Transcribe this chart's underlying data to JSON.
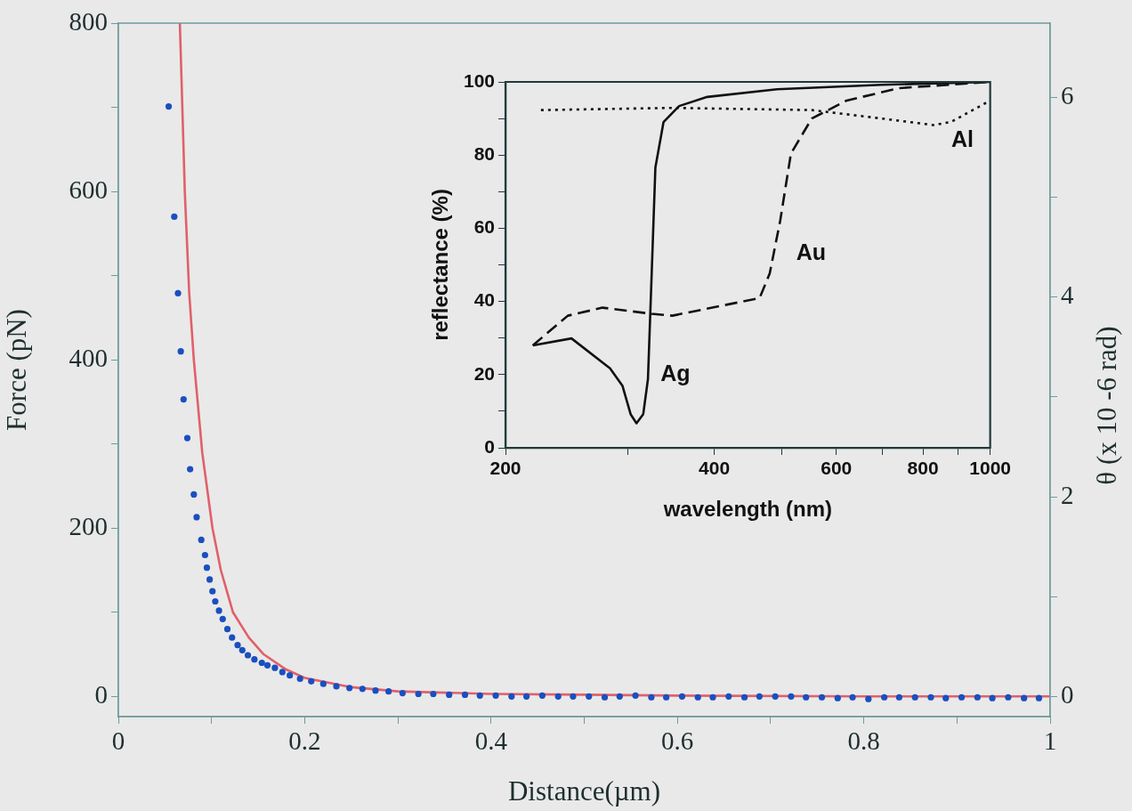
{
  "chart_data": [
    {
      "type": "scatter",
      "xlabel": "Distance(µm)",
      "ylabel": "Force (pN)",
      "y2label": "θ (x 10 -6 rad)",
      "xlim": [
        0,
        1
      ],
      "xticks": [
        0,
        {
          "value": 0.1,
          "label": null
        },
        0.2,
        {
          "value": 0.3,
          "label": null
        },
        0.4,
        {
          "value": 0.5,
          "label": null
        },
        0.6,
        {
          "value": 0.7,
          "label": null
        },
        0.8,
        {
          "value": 0.9,
          "label": null
        },
        1
      ],
      "ylim": [
        -24,
        800
      ],
      "yticks": [
        0,
        {
          "value": 100,
          "label": null
        },
        200,
        {
          "value": 300,
          "label": null
        },
        400,
        {
          "value": 500,
          "label": null
        },
        600,
        {
          "value": 700,
          "label": null
        },
        800
      ],
      "y2lim": [
        -0.2,
        6.74
      ],
      "y2ticks": [
        0,
        {
          "value": 1,
          "label": null
        },
        2,
        {
          "value": 3,
          "label": null
        },
        4,
        {
          "value": 5,
          "label": null
        },
        6
      ],
      "series": [
        {
          "marker": "circle",
          "color": "#1a4fc0",
          "x": [
            0.054,
            0.06,
            0.064,
            0.067,
            0.07,
            0.074,
            0.077,
            0.081,
            0.084,
            0.089,
            0.093,
            0.095,
            0.098,
            0.101,
            0.104,
            0.108,
            0.112,
            0.117,
            0.122,
            0.128,
            0.133,
            0.139,
            0.146,
            0.154,
            0.16,
            0.168,
            0.176,
            0.184,
            0.195,
            0.207,
            0.22,
            0.234,
            0.248,
            0.262,
            0.276,
            0.29,
            0.305,
            0.322,
            0.338,
            0.355,
            0.372,
            0.388,
            0.405,
            0.422,
            0.438,
            0.455,
            0.472,
            0.488,
            0.505,
            0.522,
            0.538,
            0.555,
            0.572,
            0.588,
            0.605,
            0.622,
            0.638,
            0.655,
            0.672,
            0.688,
            0.705,
            0.722,
            0.738,
            0.755,
            0.772,
            0.788,
            0.805,
            0.822,
            0.838,
            0.855,
            0.872,
            0.888,
            0.905,
            0.922,
            0.938,
            0.955,
            0.972,
            0.988
          ],
          "values": [
            701,
            570,
            479,
            410,
            353,
            307,
            270,
            240,
            213,
            186,
            168,
            153,
            139,
            125,
            113,
            102,
            92,
            80,
            70,
            61,
            55,
            49,
            44,
            40,
            37,
            34,
            29,
            25,
            21,
            18,
            15,
            12,
            10,
            9,
            7,
            6,
            4,
            3,
            3,
            2,
            2,
            1,
            1,
            0,
            0,
            1,
            0,
            0,
            0,
            -1,
            0,
            1,
            -1,
            -1,
            0,
            -1,
            -1,
            0,
            -1,
            0,
            0,
            0,
            -1,
            -1,
            -2,
            -1,
            -3,
            -1,
            -1,
            -1,
            -1,
            -2,
            -1,
            -1,
            -2,
            -1,
            -2,
            -2
          ]
        },
        {
          "type": "line",
          "marker": "none",
          "color": "#e0606a",
          "x": [
            0.066,
            0.0713,
            0.076,
            0.081,
            0.09,
            0.101,
            0.11,
            0.123,
            0.14,
            0.156,
            0.18,
            0.2,
            0.25,
            0.3,
            0.4,
            0.5,
            0.6,
            0.8,
            1
          ],
          "values": [
            800,
            600,
            480,
            400,
            290,
            200,
            150,
            100,
            70,
            50,
            32,
            22,
            11,
            6,
            3,
            2,
            1,
            0,
            0
          ]
        }
      ]
    },
    {
      "type": "line",
      "xlabel": "wavelength (nm)",
      "ylabel": "reflectance (%)",
      "log": "x",
      "xlim": [
        200,
        1000
      ],
      "xticks": [
        200,
        {
          "value": 300,
          "label": null
        },
        400,
        {
          "value": 500,
          "label": null
        },
        600,
        {
          "value": 700,
          "label": null
        },
        800,
        {
          "value": 900,
          "label": null
        },
        1000
      ],
      "ylim": [
        0,
        100
      ],
      "yticks": [
        0,
        {
          "value": 10,
          "label": null
        },
        20,
        {
          "value": 30,
          "label": null
        },
        40,
        {
          "value": 50,
          "label": null
        },
        60,
        {
          "value": 70,
          "label": null
        },
        80,
        {
          "value": 90,
          "label": null
        },
        100
      ],
      "series": [
        {
          "name": "Ag",
          "line_style": "solid",
          "color": "#111111",
          "x": [
            219,
            249,
            283,
            295,
            303,
            309,
            316,
            321,
            325,
            329,
            338,
            356,
            391,
            493,
            697,
            1000
          ],
          "values": [
            28,
            29.9,
            21.7,
            16.9,
            9.2,
            6.7,
            9.2,
            18.8,
            47.7,
            76.6,
            89,
            93.4,
            95.9,
            98,
            99.2,
            100
          ]
        },
        {
          "name": "Au",
          "line_style": "dashed",
          "color": "#111111",
          "x": [
            219,
            246,
            276,
            325,
            348,
            414,
            465,
            481,
            498,
            516,
            553,
            621,
            739,
            1000
          ],
          "values": [
            28,
            36.1,
            38.3,
            36.6,
            36.1,
            39,
            40.9,
            47.7,
            62.1,
            80.4,
            90,
            94.9,
            98.3,
            100
          ]
        },
        {
          "name": "Al",
          "line_style": "dotted",
          "color": "#111111",
          "x": [
            225,
            348,
            553,
            697,
            829,
            879,
            1000
          ],
          "values": [
            92.3,
            92.9,
            92.3,
            90,
            88.2,
            89.1,
            94.9
          ]
        }
      ]
    }
  ]
}
